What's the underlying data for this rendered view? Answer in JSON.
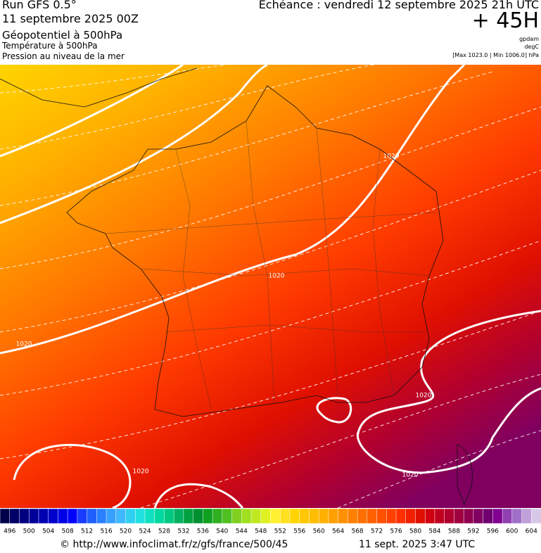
{
  "header": {
    "run": "Run GFS 0.5°",
    "date": "11 septembre 2025 00Z",
    "field1": "Géopotentiel à 500hPa",
    "field2": "Température à 500hPa",
    "field3": "Pression au niveau de la mer",
    "valid": "Echéance : vendredi 12 septembre 2025 21h UTC",
    "lead": "+ 45H",
    "unit1": "gpdam",
    "unit2": "degC",
    "range": "[Max 1023.0 | Min 1006.0] hPa"
  },
  "map": {
    "isobar_labels": [
      "1020",
      "1020",
      "1020",
      "1020",
      "1020",
      "1020"
    ]
  },
  "colorbar": {
    "ticks": [
      496,
      500,
      504,
      508,
      512,
      516,
      520,
      524,
      528,
      532,
      536,
      540,
      544,
      548,
      552,
      556,
      560,
      564,
      568,
      572,
      576,
      580,
      584,
      588,
      592,
      596,
      600,
      604
    ],
    "colors": [
      "#00004a",
      "#000066",
      "#000080",
      "#000099",
      "#0000b3",
      "#0000cc",
      "#0000e6",
      "#0000ff",
      "#1a3cff",
      "#2060ff",
      "#2a80ff",
      "#38a0ff",
      "#40b8ff",
      "#30d0f0",
      "#20e0e0",
      "#10e0c0",
      "#00d8a0",
      "#00c880",
      "#00b060",
      "#00a040",
      "#009030",
      "#10a020",
      "#30b020",
      "#50c020",
      "#80d020",
      "#a0e020",
      "#c0e820",
      "#e0f020",
      "#fff030",
      "#ffe020",
      "#ffd400",
      "#ffc800",
      "#ffbc00",
      "#ffb000",
      "#ffa000",
      "#ff9000",
      "#ff8000",
      "#ff7000",
      "#ff6000",
      "#ff5000",
      "#ff4000",
      "#ff3000",
      "#f02000",
      "#e01000",
      "#d00010",
      "#c00020",
      "#b00030",
      "#a00040",
      "#900050",
      "#800060",
      "#700070",
      "#800090",
      "#9040b0",
      "#a070c8",
      "#c0a0d8",
      "#d8c8e8"
    ]
  },
  "footer": {
    "source": "© http://www.infoclimat.fr/z/gfs/france/500/45",
    "issued": "11 sept. 2025  3:47 UTC"
  }
}
